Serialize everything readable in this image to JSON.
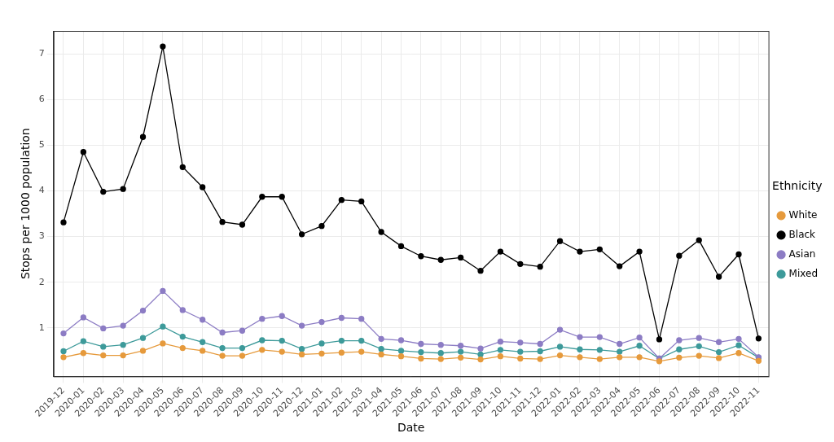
{
  "chart_data": {
    "type": "line",
    "x_label": "Date",
    "y_label": "Stops per 1000 population",
    "legend_title": "Ethnicity",
    "legend": "right",
    "grid": true,
    "marker": "circle",
    "line_style": "solid",
    "ylim": [
      -0.06,
      7.5
    ],
    "yticks": [
      1,
      2,
      3,
      4,
      5,
      6,
      7
    ],
    "categories": [
      "2019-12",
      "2020-01",
      "2020-02",
      "2020-03",
      "2020-04",
      "2020-05",
      "2020-06",
      "2020-07",
      "2020-08",
      "2020-09",
      "2020-10",
      "2020-11",
      "2020-12",
      "2021-01",
      "2021-02",
      "2021-03",
      "2021-04",
      "2021-05",
      "2021-06",
      "2021-07",
      "2021-08",
      "2021-09",
      "2021-10",
      "2021-11",
      "2021-12",
      "2022-01",
      "2022-02",
      "2022-03",
      "2022-04",
      "2022-05",
      "2022-06",
      "2022-07",
      "2022-08",
      "2022-09",
      "2022-10",
      "2022-11"
    ],
    "series": [
      {
        "name": "White",
        "color": "#e69a3c",
        "values": [
          0.36,
          0.45,
          0.4,
          0.4,
          0.5,
          0.66,
          0.56,
          0.5,
          0.39,
          0.39,
          0.52,
          0.48,
          0.42,
          0.44,
          0.46,
          0.48,
          0.42,
          0.38,
          0.33,
          0.32,
          0.35,
          0.31,
          0.38,
          0.33,
          0.32,
          0.4,
          0.36,
          0.32,
          0.36,
          0.36,
          0.27,
          0.35,
          0.39,
          0.34,
          0.45,
          0.28
        ]
      },
      {
        "name": "Black",
        "color": "#000000",
        "values": [
          3.31,
          4.85,
          3.98,
          4.04,
          5.18,
          7.16,
          4.52,
          4.08,
          3.32,
          3.26,
          3.87,
          3.87,
          3.05,
          3.23,
          3.8,
          3.77,
          3.1,
          2.79,
          2.57,
          2.49,
          2.54,
          2.25,
          2.67,
          2.4,
          2.34,
          2.9,
          2.67,
          2.72,
          2.35,
          2.67,
          0.75,
          2.58,
          2.92,
          2.12,
          2.61,
          0.77
        ]
      },
      {
        "name": "Asian",
        "color": "#8c7cc4",
        "values": [
          0.88,
          1.23,
          0.99,
          1.05,
          1.38,
          1.81,
          1.39,
          1.18,
          0.9,
          0.94,
          1.2,
          1.26,
          1.05,
          1.13,
          1.22,
          1.2,
          0.76,
          0.73,
          0.65,
          0.63,
          0.61,
          0.55,
          0.7,
          0.68,
          0.65,
          0.96,
          0.8,
          0.8,
          0.65,
          0.79,
          0.33,
          0.73,
          0.78,
          0.69,
          0.76,
          0.36
        ]
      },
      {
        "name": "Mixed",
        "color": "#3d9a9a",
        "values": [
          0.49,
          0.71,
          0.59,
          0.63,
          0.78,
          1.03,
          0.81,
          0.69,
          0.56,
          0.56,
          0.73,
          0.72,
          0.54,
          0.66,
          0.72,
          0.72,
          0.54,
          0.5,
          0.47,
          0.45,
          0.48,
          0.42,
          0.52,
          0.48,
          0.49,
          0.59,
          0.53,
          0.52,
          0.48,
          0.61,
          0.33,
          0.53,
          0.6,
          0.47,
          0.62,
          0.35
        ]
      }
    ]
  }
}
